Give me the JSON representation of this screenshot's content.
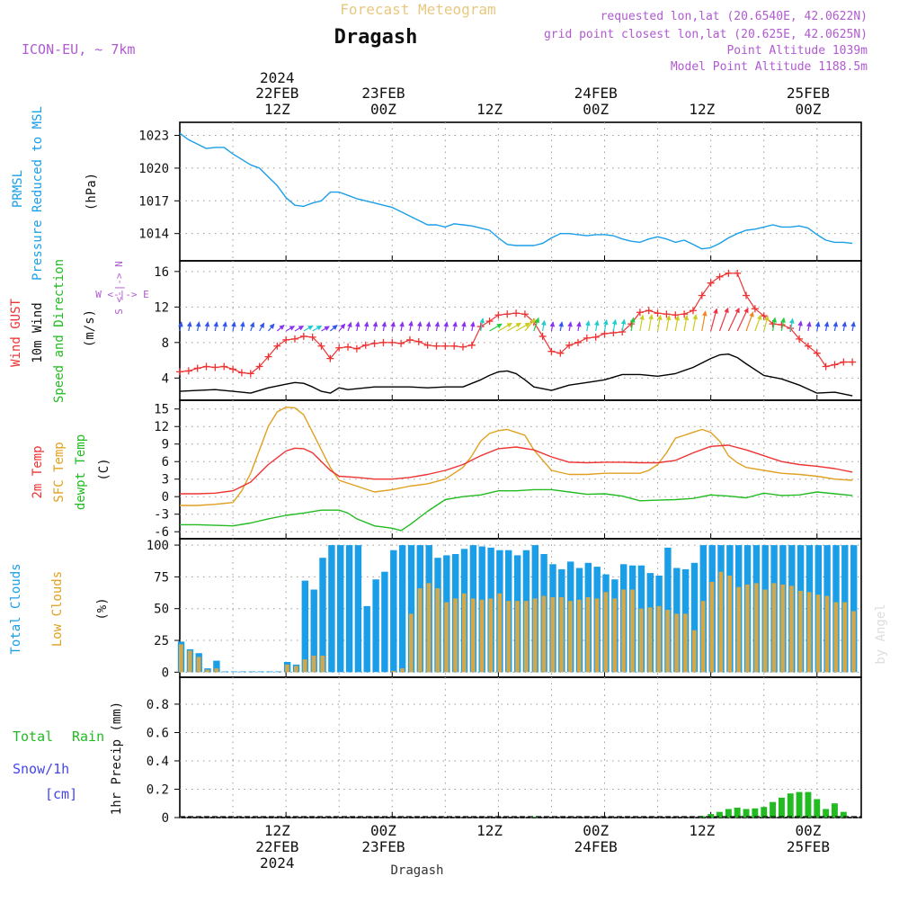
{
  "header": {
    "product": "Forecast Meteogram",
    "location": "Dragash",
    "model": "ICON-EU, ~ 7km",
    "requested": "requested lon,lat (20.6540E, 42.0622N)",
    "gridpoint": "grid point closest lon,lat (20.625E, 42.0625N)",
    "point_alt": "Point Altitude 1039m",
    "model_alt": "Model Point Altitude 1188.5m",
    "credit": "by Angel",
    "footer_location": "Dragash"
  },
  "colors": {
    "pressure": "#1a9ee8",
    "gust": "#ee3333",
    "wind": "#000000",
    "temp2m": "#ee3333",
    "sfc": "#e0a020",
    "dewpt": "#22bb22",
    "total_clouds": "#1a9ee8",
    "low_clouds": "#d4a84a",
    "rain": "#22bb22",
    "snow": "#4444ee",
    "labels_purple": "#b05ad0"
  },
  "time_axis": {
    "top_ticks": [
      {
        "h": 12,
        "l1": "2024",
        "l2": "22FEB",
        "l3": "12Z"
      },
      {
        "h": 24,
        "l1": "",
        "l2": "23FEB",
        "l3": "00Z"
      },
      {
        "h": 36,
        "l1": "",
        "l2": "",
        "l3": "12Z"
      },
      {
        "h": 48,
        "l1": "",
        "l2": "24FEB",
        "l3": "00Z"
      },
      {
        "h": 60,
        "l1": "",
        "l2": "",
        "l3": "12Z"
      },
      {
        "h": 72,
        "l1": "",
        "l2": "25FEB",
        "l3": "00Z"
      }
    ],
    "bottom_ticks": [
      {
        "h": 12,
        "l1": "12Z",
        "l2": "22FEB",
        "l3": "2024"
      },
      {
        "h": 24,
        "l1": "00Z",
        "l2": "23FEB",
        "l3": ""
      },
      {
        "h": 36,
        "l1": "12Z",
        "l2": "",
        "l3": ""
      },
      {
        "h": 48,
        "l1": "00Z",
        "l2": "24FEB",
        "l3": ""
      },
      {
        "h": 60,
        "l1": "12Z",
        "l2": "",
        "l3": ""
      },
      {
        "h": 72,
        "l1": "00Z",
        "l2": "25FEB",
        "l3": ""
      }
    ]
  },
  "panels": {
    "pressure": {
      "label1": "PRMSL",
      "label2": "Pressure Reduced to MSL",
      "unit": "(hPa)",
      "ylim": [
        1011.5,
        1024.2
      ],
      "ticks": [
        1014,
        1017,
        1020,
        1023
      ]
    },
    "wind": {
      "label_gust": "Wind GUST",
      "label_wind": "10m Wind",
      "label_dir": "Speed and Direction",
      "unit": "(m/s)",
      "compass_n": "N",
      "compass_s": "S",
      "compass_we": "W <-|-> E",
      "ylim": [
        1.5,
        17.2
      ],
      "ticks": [
        4,
        8,
        12,
        16
      ]
    },
    "temp": {
      "label_2m": "2m Temp",
      "label_sfc": "SFC Temp",
      "label_dew": "dewpt Temp",
      "unit": "(C)",
      "ylim": [
        -7.2,
        16.5
      ],
      "ticks": [
        -6,
        -3,
        0,
        3,
        6,
        9,
        12,
        15
      ]
    },
    "clouds": {
      "label_total": "Total Clouds",
      "label_low": "Low Clouds",
      "unit": "(%)",
      "ylim": [
        -4,
        105
      ],
      "ticks": [
        0,
        25,
        50,
        75,
        100
      ]
    },
    "precip": {
      "label_total": "Total",
      "label_rain": "Rain",
      "label_snow": "Snow/1h",
      "label_cm": "[cm]",
      "unit": "1hr Precip (mm)",
      "ylim": [
        0,
        0.99
      ],
      "ticks": [
        "0",
        "0.2",
        "0.4",
        "0.6",
        "0.8"
      ]
    }
  },
  "chart_data": {
    "type": "line",
    "x_unit": "hours since 22FEB 2024 01Z",
    "pressure": {
      "x": [
        0,
        1,
        2,
        3,
        4,
        5,
        6,
        7,
        8,
        9,
        10,
        11,
        12,
        13,
        14,
        15,
        16,
        17,
        18,
        19,
        20,
        21,
        22,
        23,
        24,
        25,
        26,
        27,
        28,
        29,
        30,
        31,
        32,
        33,
        34,
        35,
        36,
        37,
        38,
        39,
        40,
        41,
        42,
        43,
        44,
        45,
        46,
        47,
        48,
        49,
        50,
        51,
        52,
        53,
        54,
        55,
        56,
        57,
        58,
        59,
        60,
        61,
        62,
        63,
        64,
        65,
        66,
        67,
        68,
        69,
        70,
        71,
        72,
        73,
        74,
        75,
        76
      ],
      "y": [
        1023.2,
        1022.6,
        1022.2,
        1021.8,
        1021.9,
        1021.9,
        1021.3,
        1020.8,
        1020.3,
        1020,
        1019.2,
        1018.4,
        1017.3,
        1016.6,
        1016.5,
        1016.8,
        1017,
        1017.8,
        1017.8,
        1017.5,
        1017.2,
        1017,
        1016.8,
        1016.6,
        1016.4,
        1016,
        1015.6,
        1015.2,
        1014.8,
        1014.8,
        1014.6,
        1014.9,
        1014.8,
        1014.7,
        1014.5,
        1014.3,
        1013.6,
        1013,
        1012.9,
        1012.9,
        1012.9,
        1013.1,
        1013.6,
        1014,
        1014,
        1013.9,
        1013.8,
        1013.9,
        1013.9,
        1013.8,
        1013.5,
        1013.3,
        1013.2,
        1013.5,
        1013.7,
        1013.5,
        1013.2,
        1013.4,
        1013,
        1012.6,
        1012.7,
        1013.1,
        1013.6,
        1014,
        1014.3,
        1014.4,
        1014.6,
        1014.8,
        1014.6,
        1014.6,
        1014.7,
        1014.5,
        1013.9,
        1013.4,
        1013.2,
        1013.2,
        1013.1
      ]
    },
    "gust": {
      "x": [
        0,
        1,
        2,
        3,
        4,
        5,
        6,
        7,
        8,
        9,
        10,
        11,
        12,
        13,
        14,
        15,
        16,
        17,
        18,
        19,
        20,
        21,
        22,
        23,
        24,
        25,
        26,
        27,
        28,
        29,
        30,
        31,
        32,
        33,
        34,
        35,
        36,
        37,
        38,
        39,
        40,
        41,
        42,
        43,
        44,
        45,
        46,
        47,
        48,
        49,
        50,
        51,
        52,
        53,
        54,
        55,
        56,
        57,
        58,
        59,
        60,
        61,
        62,
        63,
        64,
        65,
        66,
        67,
        68,
        69,
        70,
        71,
        72,
        73,
        74,
        75,
        76
      ],
      "y": [
        4.7,
        4.8,
        5.1,
        5.3,
        5.2,
        5.3,
        5,
        4.6,
        4.5,
        5.3,
        6.4,
        7.6,
        8.3,
        8.4,
        8.7,
        8.6,
        7.6,
        6.2,
        7.4,
        7.5,
        7.3,
        7.7,
        7.9,
        8,
        8,
        7.9,
        8.3,
        8.1,
        7.7,
        7.6,
        7.6,
        7.6,
        7.5,
        7.7,
        9.8,
        10.4,
        11.1,
        11.2,
        11.3,
        11.2,
        10.3,
        8.7,
        7,
        6.8,
        7.7,
        8,
        8.5,
        8.6,
        9,
        9.1,
        9.2,
        10.1,
        11.4,
        11.6,
        11.3,
        11.2,
        11.1,
        11.2,
        11.6,
        13.3,
        14.7,
        15.4,
        15.8,
        15.8,
        13.3,
        11.8,
        11,
        10.1,
        10,
        9.6,
        8.4,
        7.6,
        6.8,
        5.3,
        5.5,
        5.8,
        5.8
      ]
    },
    "wind10m": {
      "x": [
        0,
        2,
        4,
        6,
        8,
        10,
        12,
        13,
        14,
        15,
        16,
        17,
        18,
        19,
        20,
        22,
        24,
        26,
        28,
        30,
        32,
        34,
        35,
        36,
        37,
        38,
        39,
        40,
        42,
        44,
        46,
        48,
        50,
        52,
        54,
        56,
        58,
        60,
        61,
        62,
        63,
        64,
        66,
        68,
        70,
        72,
        74,
        76
      ],
      "y": [
        2.5,
        2.6,
        2.7,
        2.5,
        2.3,
        2.9,
        3.3,
        3.5,
        3.4,
        3.0,
        2.5,
        2.3,
        2.9,
        2.7,
        2.8,
        3.0,
        3.0,
        3.0,
        2.9,
        3.0,
        3.0,
        3.8,
        4.3,
        4.7,
        4.8,
        4.5,
        3.8,
        3.0,
        2.6,
        3.2,
        3.5,
        3.8,
        4.4,
        4.4,
        4.2,
        4.5,
        5.2,
        6.2,
        6.6,
        6.7,
        6.3,
        5.6,
        4.3,
        3.9,
        3.2,
        2.3,
        2.4,
        2.0
      ]
    },
    "wind_dir_deg": [
      10,
      10,
      10,
      10,
      10,
      10,
      10,
      10,
      20,
      30,
      40,
      50,
      60,
      60,
      60,
      60,
      60,
      50,
      40,
      20,
      10,
      10,
      10,
      10,
      10,
      10,
      10,
      10,
      10,
      10,
      10,
      10,
      10,
      10,
      10,
      60,
      60,
      60,
      60,
      40,
      20,
      10,
      10,
      10,
      10,
      10,
      10,
      10,
      10,
      10,
      10,
      10,
      10,
      10,
      10,
      10,
      10,
      10,
      10,
      10,
      15,
      20,
      25,
      25,
      20,
      20,
      15,
      10,
      10,
      10,
      10,
      10,
      10,
      10,
      10,
      10,
      10
    ],
    "temp2m": {
      "x": [
        0,
        2,
        4,
        6,
        8,
        10,
        12,
        13,
        14,
        15,
        16,
        17,
        18,
        20,
        22,
        24,
        26,
        28,
        30,
        32,
        34,
        36,
        38,
        40,
        42,
        44,
        46,
        48,
        50,
        52,
        54,
        56,
        58,
        60,
        62,
        64,
        66,
        68,
        70,
        72,
        74,
        76
      ],
      "y": [
        0.5,
        0.5,
        0.6,
        1,
        2.5,
        5.5,
        7.8,
        8.3,
        8.2,
        7.5,
        6,
        4.5,
        3.5,
        3.3,
        3,
        3,
        3.3,
        3.8,
        4.5,
        5.5,
        7,
        8.2,
        8.5,
        8,
        6.8,
        5.9,
        5.8,
        5.9,
        5.9,
        5.8,
        5.8,
        6.2,
        7.5,
        8.6,
        8.8,
        8,
        7,
        6,
        5.5,
        5.2,
        4.8,
        4.2
      ]
    },
    "sfc_temp": {
      "x": [
        0,
        2,
        4,
        6,
        7,
        8,
        9,
        10,
        11,
        12,
        13,
        14,
        15,
        16,
        17,
        18,
        20,
        22,
        24,
        26,
        28,
        30,
        32,
        33,
        34,
        35,
        36,
        37,
        38,
        39,
        40,
        42,
        44,
        46,
        48,
        50,
        52,
        53,
        54,
        55,
        56,
        57,
        58,
        59,
        60,
        61,
        62,
        63,
        64,
        66,
        68,
        70,
        72,
        74,
        76
      ],
      "y": [
        -1.5,
        -1.5,
        -1.3,
        -1,
        1,
        4,
        8,
        12,
        14.5,
        15.3,
        15.2,
        14,
        11,
        8,
        5,
        2.8,
        1.8,
        0.8,
        1.2,
        1.8,
        2.2,
        3,
        5,
        7,
        9.5,
        10.8,
        11.3,
        11.5,
        11,
        10.5,
        8,
        4.5,
        3.8,
        3.8,
        4,
        4,
        4,
        4.5,
        5.5,
        7.5,
        10,
        10.5,
        11,
        11.5,
        11,
        9.5,
        7,
        5.8,
        5,
        4.5,
        4,
        3.8,
        3.5,
        3,
        2.8
      ]
    },
    "dewpt": {
      "x": [
        0,
        2,
        4,
        6,
        8,
        10,
        12,
        14,
        16,
        18,
        19,
        20,
        22,
        24,
        25,
        26,
        28,
        30,
        32,
        34,
        36,
        38,
        40,
        42,
        44,
        46,
        48,
        50,
        52,
        54,
        56,
        58,
        60,
        62,
        64,
        66,
        68,
        70,
        72,
        74,
        76
      ],
      "y": [
        -4.8,
        -4.8,
        -4.9,
        -5,
        -4.5,
        -3.8,
        -3.2,
        -2.8,
        -2.3,
        -2.3,
        -2.8,
        -3.8,
        -5,
        -5.4,
        -5.8,
        -4.8,
        -2.5,
        -0.5,
        0,
        0.3,
        1,
        1,
        1.2,
        1.2,
        0.8,
        0.4,
        0.5,
        0.1,
        -0.7,
        -0.6,
        -0.5,
        -0.3,
        0.3,
        0.1,
        -0.2,
        0.6,
        0.2,
        0.3,
        0.8,
        0.5,
        0.2
      ]
    },
    "total_clouds": [
      24,
      18,
      15,
      3,
      9,
      0,
      0,
      0,
      0,
      0,
      0,
      0,
      8,
      6,
      72,
      65,
      90,
      100,
      100,
      100,
      100,
      52,
      73,
      79,
      96,
      100,
      100,
      100,
      100,
      90,
      92,
      93,
      97,
      100,
      99,
      98,
      96,
      96,
      92,
      96,
      100,
      93,
      85,
      81,
      87,
      82,
      86,
      83,
      77,
      73,
      85,
      84,
      84,
      78,
      76,
      98,
      82,
      81,
      86,
      100,
      100,
      100,
      100,
      100,
      100,
      100,
      100,
      100,
      100,
      100,
      100,
      100,
      100,
      100,
      100,
      100,
      100
    ],
    "low_clouds": [
      22,
      17,
      12,
      2,
      3,
      0,
      0,
      0,
      0,
      0,
      0,
      0,
      6,
      5,
      10,
      13,
      13,
      0,
      0,
      0,
      0,
      0,
      0,
      0,
      1,
      3,
      46,
      66,
      70,
      66,
      55,
      58,
      62,
      58,
      57,
      58,
      62,
      56,
      56,
      56,
      58,
      60,
      59,
      59,
      56,
      57,
      59,
      58,
      63,
      58,
      65,
      65,
      50,
      51,
      52,
      49,
      46,
      46,
      33,
      56,
      71,
      79,
      76,
      67,
      69,
      70,
      65,
      70,
      69,
      68,
      64,
      63,
      61,
      60,
      55,
      55,
      48
    ]
  }
}
